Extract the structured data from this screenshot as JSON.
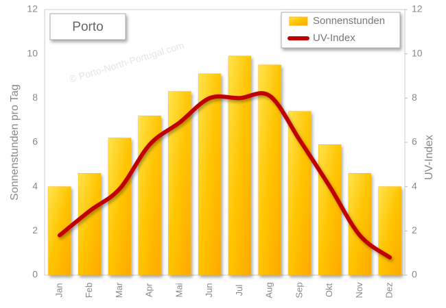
{
  "chart_data": {
    "type": "bar",
    "title": "Porto",
    "watermark": "© Porto-North-Portugal.com",
    "y_label": "Sonnenstunden pro Tag",
    "y2_label": "UV-Index",
    "categories": [
      "Jan",
      "Feb",
      "Mar",
      "Apr",
      "Mai",
      "Jun",
      "Jul",
      "Aug",
      "Sep",
      "Okt",
      "Nov",
      "Dez"
    ],
    "series": [
      {
        "name": "Sonnenstunden",
        "type": "bar",
        "color": "#ffb400",
        "values": [
          4.0,
          4.6,
          6.2,
          7.2,
          8.3,
          9.1,
          9.9,
          9.5,
          7.4,
          5.9,
          4.6,
          4.0
        ]
      },
      {
        "name": "UV-Index",
        "type": "line",
        "axis": "y2",
        "color": "#c00000",
        "values": [
          1.8,
          2.9,
          3.9,
          5.9,
          6.9,
          8.0,
          8.0,
          8.1,
          6.1,
          4.0,
          1.8,
          0.8
        ]
      }
    ],
    "ylim": [
      0,
      12
    ],
    "yticks": [
      0,
      2,
      4,
      6,
      8,
      10,
      12
    ],
    "y2lim": [
      0,
      12
    ],
    "y2ticks": [
      0,
      2,
      4,
      6,
      8,
      10,
      12
    ],
    "grid": true,
    "legend": "top-right"
  }
}
